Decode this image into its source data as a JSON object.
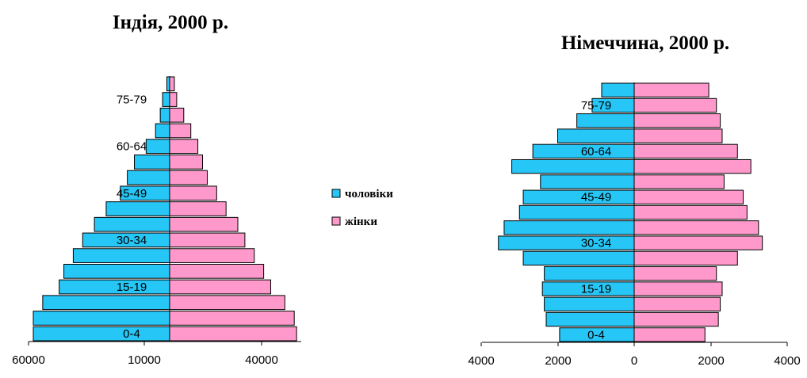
{
  "colors": {
    "male": "#26c6f6",
    "female": "#ff99cc",
    "outline": "#000000"
  },
  "legend": {
    "male_label": "чоловіки",
    "female_label": "жінки"
  },
  "chart_data": [
    {
      "type": "bar",
      "title": "Індія, 2000 р.",
      "orientation": "horizontal-pyramid",
      "categories": [
        "0-4",
        "5-9",
        "10-14",
        "15-19",
        "20-24",
        "25-29",
        "30-34",
        "35-39",
        "40-44",
        "45-49",
        "50-54",
        "55-59",
        "60-64",
        "65-69",
        "70-74",
        "75-79",
        "80+"
      ],
      "age_labels_shown": [
        "0-4",
        "15-19",
        "30-34",
        "45-49",
        "60-64",
        "75-79"
      ],
      "series": [
        {
          "name": "чоловіки",
          "values": [
            58000,
            58000,
            54000,
            47000,
            45000,
            41000,
            37000,
            32000,
            27000,
            21000,
            18000,
            15000,
            10000,
            6000,
            4000,
            3000,
            1200
          ]
        },
        {
          "name": "жінки",
          "values": [
            54000,
            53000,
            49000,
            43000,
            40000,
            36000,
            32000,
            29000,
            24000,
            20000,
            16000,
            14000,
            12000,
            9000,
            6000,
            3000,
            2000
          ]
        }
      ],
      "x_tick_labels": [
        "60000",
        "10000",
        "40000"
      ],
      "xlim": [
        -60000,
        55000
      ]
    },
    {
      "type": "bar",
      "title": "Німеччина, 2000 р.",
      "orientation": "horizontal-pyramid",
      "categories": [
        "0-4",
        "5-9",
        "10-14",
        "15-19",
        "20-24",
        "25-29",
        "30-34",
        "35-39",
        "40-44",
        "45-49",
        "50-54",
        "55-59",
        "60-64",
        "65-69",
        "70-74",
        "75-79",
        "80+"
      ],
      "age_labels_shown": [
        "0-4",
        "15-19",
        "30-34",
        "45-49",
        "60-64",
        "75-79"
      ],
      "series": [
        {
          "name": "чоловіки",
          "values": [
            1950,
            2300,
            2350,
            2400,
            2350,
            2900,
            3550,
            3400,
            3000,
            2900,
            2450,
            3200,
            2650,
            2000,
            1500,
            1100,
            850
          ]
        },
        {
          "name": "жінки",
          "values": [
            1850,
            2200,
            2250,
            2300,
            2150,
            2700,
            3350,
            3250,
            2950,
            2850,
            2350,
            3050,
            2700,
            2300,
            2250,
            2150,
            1950
          ]
        }
      ],
      "x_tick_labels": [
        "4000",
        "2000",
        "0",
        "2000",
        "4000"
      ],
      "xlim": [
        -4000,
        4000
      ]
    }
  ]
}
